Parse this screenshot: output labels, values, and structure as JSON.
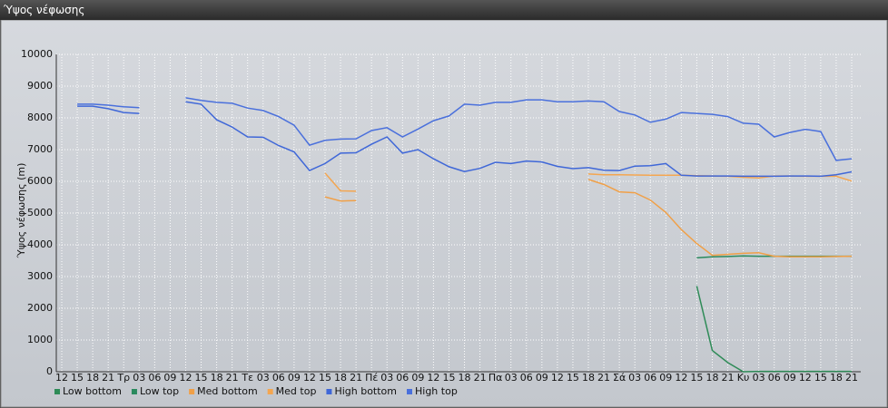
{
  "window_title": "Ύψος νέφωσης",
  "chart_data": {
    "type": "line",
    "ylabel": "Ύψος νέφωσης (m)",
    "categories": [
      "12",
      "15",
      "18",
      "21",
      "Τρ",
      "03",
      "06",
      "09",
      "12",
      "15",
      "18",
      "21",
      "Τε",
      "03",
      "06",
      "09",
      "12",
      "15",
      "18",
      "21",
      "Πέ",
      "03",
      "06",
      "09",
      "12",
      "15",
      "18",
      "21",
      "Πα",
      "03",
      "06",
      "09",
      "12",
      "15",
      "18",
      "21",
      "Σά",
      "03",
      "06",
      "09",
      "12",
      "15",
      "18",
      "21",
      "Κυ",
      "03",
      "06",
      "09",
      "12",
      "15",
      "18",
      "21"
    ],
    "ylim": [
      0,
      10000
    ],
    "yticks": [
      0,
      1000,
      2000,
      3000,
      4000,
      5000,
      6000,
      7000,
      8000,
      9000,
      10000
    ],
    "grid": true,
    "series": [
      {
        "name": "Low bottom",
        "color": "#2e8b57",
        "values": [
          null,
          null,
          null,
          null,
          null,
          null,
          null,
          null,
          null,
          null,
          null,
          null,
          null,
          null,
          null,
          null,
          null,
          null,
          null,
          null,
          null,
          null,
          null,
          null,
          null,
          null,
          null,
          null,
          null,
          null,
          null,
          null,
          null,
          null,
          null,
          null,
          null,
          null,
          null,
          null,
          null,
          2700,
          670,
          290,
          0,
          10,
          10,
          10,
          10,
          10,
          10,
          10
        ]
      },
      {
        "name": "Low top",
        "color": "#2a8a5e",
        "values": [
          null,
          null,
          null,
          null,
          null,
          null,
          null,
          null,
          null,
          null,
          null,
          null,
          null,
          null,
          null,
          null,
          null,
          null,
          null,
          null,
          null,
          null,
          null,
          null,
          null,
          null,
          null,
          null,
          null,
          null,
          null,
          null,
          null,
          null,
          null,
          null,
          null,
          null,
          null,
          null,
          null,
          3590,
          3620,
          3630,
          3650,
          3640,
          3640,
          3640,
          3640,
          3640,
          3640,
          3640
        ]
      },
      {
        "name": "Med bottom",
        "color": "#f0a048",
        "values": [
          null,
          null,
          null,
          null,
          null,
          null,
          null,
          null,
          null,
          null,
          null,
          null,
          null,
          null,
          null,
          null,
          null,
          5510,
          5380,
          5390,
          null,
          null,
          null,
          null,
          null,
          null,
          null,
          null,
          null,
          null,
          null,
          null,
          null,
          null,
          6060,
          5900,
          5670,
          5640,
          5410,
          5020,
          4480,
          4040,
          3670,
          3700,
          3730,
          3750,
          3640,
          3620,
          3620,
          3620,
          3630,
          3640
        ]
      },
      {
        "name": "Med top",
        "color": "#f4a650",
        "values": [
          null,
          null,
          null,
          null,
          null,
          null,
          null,
          null,
          null,
          null,
          null,
          null,
          null,
          null,
          null,
          null,
          null,
          6260,
          5700,
          5690,
          null,
          null,
          null,
          null,
          null,
          null,
          null,
          null,
          null,
          null,
          null,
          null,
          null,
          null,
          6230,
          6210,
          6210,
          6200,
          6190,
          6190,
          6190,
          6180,
          6170,
          6160,
          6130,
          6110,
          6170,
          6170,
          6160,
          6160,
          6160,
          6010
        ]
      },
      {
        "name": "High bottom",
        "color": "#3f67d8",
        "values": [
          null,
          8370,
          8370,
          8290,
          8170,
          8140,
          null,
          null,
          8510,
          8430,
          7940,
          7710,
          7400,
          7390,
          7130,
          6930,
          6340,
          6560,
          6890,
          6900,
          7170,
          7400,
          6890,
          7000,
          6710,
          6460,
          6310,
          6410,
          6600,
          6560,
          6640,
          6610,
          6470,
          6400,
          6430,
          6350,
          6340,
          6480,
          6490,
          6560,
          6190,
          6170,
          6170,
          6170,
          6160,
          6160,
          6160,
          6170,
          6170,
          6160,
          6210,
          6300
        ]
      },
      {
        "name": "High top",
        "color": "#4a70dc",
        "values": [
          null,
          8430,
          8430,
          8400,
          8350,
          8320,
          null,
          null,
          8630,
          8550,
          8490,
          8460,
          8310,
          8230,
          8040,
          7770,
          7140,
          7290,
          7330,
          7340,
          7600,
          7690,
          7400,
          7650,
          7910,
          8060,
          8430,
          8400,
          8490,
          8490,
          8570,
          8570,
          8510,
          8510,
          8530,
          8510,
          8200,
          8090,
          7860,
          7960,
          8170,
          8140,
          8110,
          8040,
          7830,
          7800,
          7400,
          7540,
          7640,
          7570,
          6660,
          6710
        ]
      }
    ]
  }
}
